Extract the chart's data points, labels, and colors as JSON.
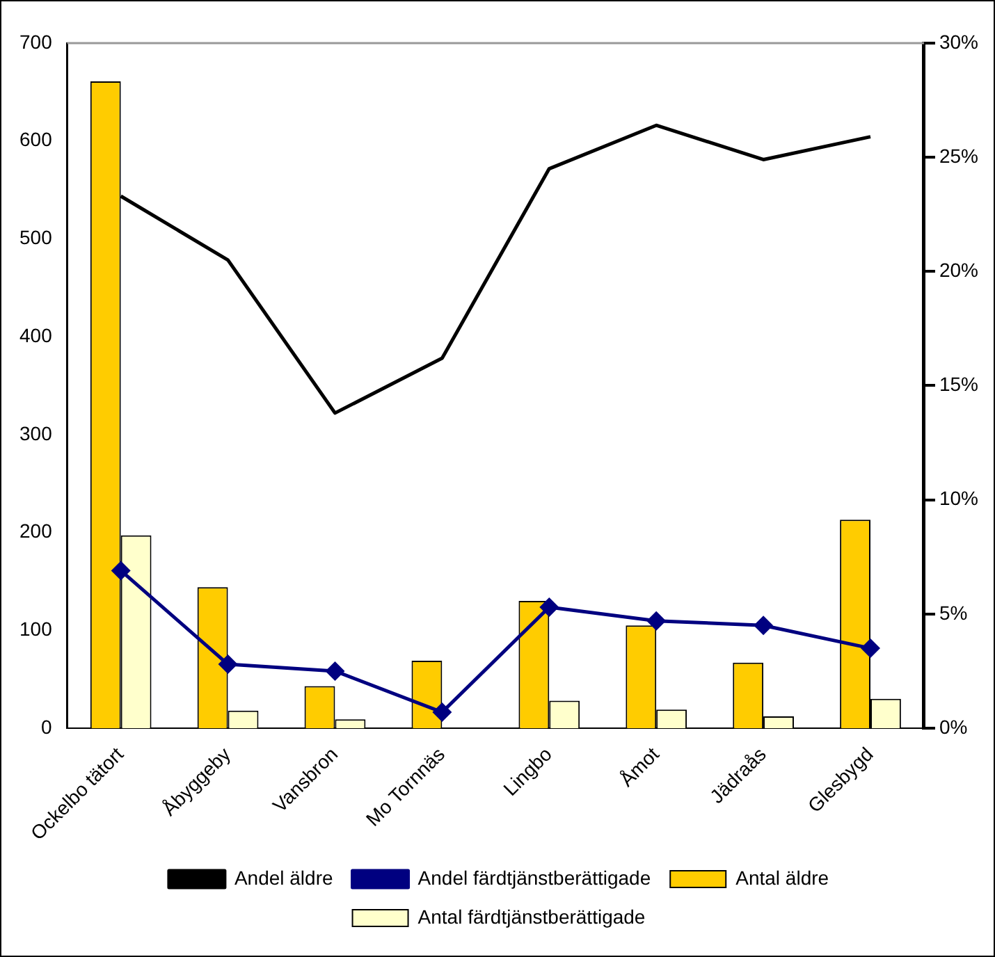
{
  "chart_data": {
    "type": "bar",
    "categories": [
      "Ockelbo tätort",
      "Åbyggeby",
      "Vansbron",
      "Mo Tornnäs",
      "Lingbo",
      "Åmot",
      "Jädraås",
      "Glesbygd"
    ],
    "series": [
      {
        "name": "Antal äldre",
        "color": "#ffcc00",
        "values": [
          661,
          144,
          43,
          69,
          130,
          105,
          67,
          213
        ]
      },
      {
        "name": "Antal färdtjänstberättigade",
        "color": "#ffffcc",
        "values": [
          197,
          18,
          9,
          null,
          28,
          19,
          12,
          30
        ]
      },
      {
        "name": "Andel äldre",
        "type": "line",
        "axis": "y2",
        "color": "#000000",
        "marker": "none",
        "values": [
          23.3,
          20.5,
          13.8,
          16.2,
          24.5,
          26.4,
          24.9,
          25.9
        ]
      },
      {
        "name": "Andel färdtjänstberättigade",
        "type": "line",
        "axis": "y2",
        "color": "#000080",
        "marker": "diamond",
        "values": [
          6.9,
          2.8,
          2.5,
          0.7,
          5.3,
          4.7,
          4.5,
          3.5
        ]
      }
    ],
    "ylim": [
      0,
      700
    ],
    "yticks": [
      0,
      100,
      200,
      300,
      400,
      500,
      600,
      700
    ],
    "y2lim": [
      0,
      30
    ],
    "y2ticks": [
      {
        "value": 0,
        "label": "0%"
      },
      {
        "value": 5,
        "label": "5%"
      },
      {
        "value": 10,
        "label": "10%"
      },
      {
        "value": 15,
        "label": "15%"
      },
      {
        "value": 20,
        "label": "20%"
      },
      {
        "value": 25,
        "label": "25%"
      },
      {
        "value": 30,
        "label": "30%"
      }
    ],
    "grid": false,
    "legend": "bottom"
  }
}
